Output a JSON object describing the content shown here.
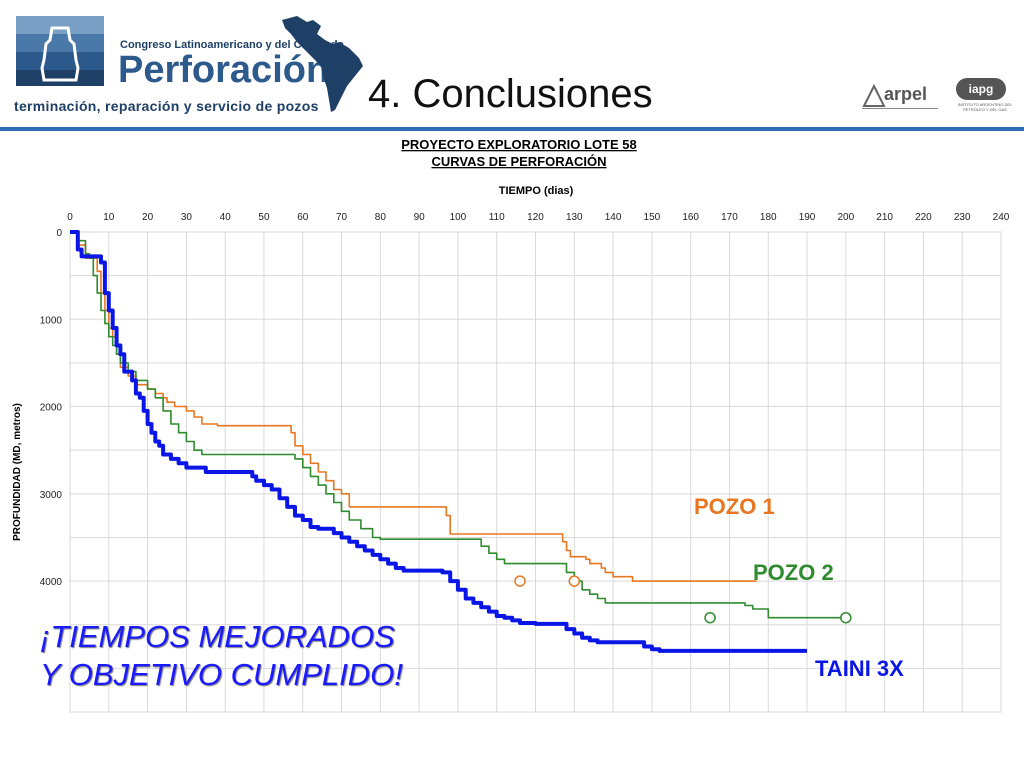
{
  "header": {
    "logo_top_text": "Congreso Latinoamericano y del Caribe de",
    "logo_main_text": "Perforación",
    "logo_bottom_text": "terminación, reparación y servicio de pozos",
    "slide_title": "4. Conclusiones",
    "arpel_text": "arpel",
    "iapg_text": "iapg",
    "iapg_subtext": "INSTITUTO ARGENTINO DEL PETRÓLEO Y DEL GAS"
  },
  "colors": {
    "pozo1": "#e87722",
    "pozo2": "#2e8b2e",
    "taini": "#0a16e6",
    "accent": "#2c6fb5"
  },
  "chart_data": {
    "type": "line",
    "title": "PROYECTO EXPLORATORIO LOTE 58",
    "subtitle": "CURVAS DE PERFORACIÓN",
    "xlabel": "TIEMPO (dias)",
    "ylabel": "PROFUNDIDAD (MD, metros)",
    "xlim": [
      0,
      240
    ],
    "ylim": [
      0,
      5500
    ],
    "x_ticks": [
      0,
      10,
      20,
      30,
      40,
      50,
      60,
      70,
      80,
      90,
      100,
      110,
      120,
      130,
      140,
      150,
      160,
      170,
      180,
      190,
      200,
      210,
      220,
      230,
      240
    ],
    "y_ticks": [
      0,
      1000,
      2000,
      3000,
      4000
    ],
    "y_invert": true,
    "x_axis_position": "top",
    "series": [
      {
        "name": "POZO 1",
        "marker_points": [
          [
            116,
            4000
          ],
          [
            130,
            4000
          ]
        ],
        "points": [
          [
            0,
            0
          ],
          [
            2,
            150
          ],
          [
            4,
            300
          ],
          [
            6,
            300
          ],
          [
            7,
            450
          ],
          [
            8,
            700
          ],
          [
            9,
            900
          ],
          [
            10,
            1100
          ],
          [
            11,
            1200
          ],
          [
            12,
            1400
          ],
          [
            13,
            1550
          ],
          [
            15,
            1650
          ],
          [
            17,
            1750
          ],
          [
            20,
            1800
          ],
          [
            22,
            1850
          ],
          [
            24,
            1900
          ],
          [
            25,
            1950
          ],
          [
            27,
            2000
          ],
          [
            30,
            2050
          ],
          [
            32,
            2120
          ],
          [
            34,
            2200
          ],
          [
            36,
            2200
          ],
          [
            38,
            2220
          ],
          [
            40,
            2220
          ],
          [
            45,
            2220
          ],
          [
            50,
            2220
          ],
          [
            55,
            2220
          ],
          [
            57,
            2300
          ],
          [
            58,
            2450
          ],
          [
            60,
            2550
          ],
          [
            62,
            2650
          ],
          [
            64,
            2750
          ],
          [
            66,
            2850
          ],
          [
            68,
            2950
          ],
          [
            70,
            3000
          ],
          [
            72,
            3150
          ],
          [
            75,
            3150
          ],
          [
            80,
            3150
          ],
          [
            85,
            3150
          ],
          [
            90,
            3150
          ],
          [
            95,
            3150
          ],
          [
            97,
            3250
          ],
          [
            98,
            3460
          ],
          [
            100,
            3460
          ],
          [
            110,
            3460
          ],
          [
            120,
            3460
          ],
          [
            125,
            3460
          ],
          [
            127,
            3550
          ],
          [
            128,
            3650
          ],
          [
            129,
            3720
          ],
          [
            131,
            3720
          ],
          [
            133,
            3750
          ],
          [
            134,
            3800
          ],
          [
            136,
            3800
          ],
          [
            137,
            3850
          ],
          [
            138,
            3900
          ],
          [
            140,
            3950
          ],
          [
            145,
            4000
          ],
          [
            160,
            4000
          ],
          [
            170,
            4000
          ],
          [
            175,
            4000
          ],
          [
            177,
            4000
          ]
        ]
      },
      {
        "name": "POZO 2",
        "marker_points": [
          [
            165,
            4420
          ],
          [
            200,
            4420
          ]
        ],
        "points": [
          [
            0,
            0
          ],
          [
            2,
            100
          ],
          [
            4,
            250
          ],
          [
            5,
            300
          ],
          [
            6,
            500
          ],
          [
            7,
            700
          ],
          [
            8,
            900
          ],
          [
            9,
            1050
          ],
          [
            10,
            1200
          ],
          [
            11,
            1300
          ],
          [
            12,
            1400
          ],
          [
            13,
            1500
          ],
          [
            15,
            1600
          ],
          [
            17,
            1700
          ],
          [
            20,
            1800
          ],
          [
            22,
            1900
          ],
          [
            24,
            2050
          ],
          [
            26,
            2200
          ],
          [
            28,
            2300
          ],
          [
            30,
            2400
          ],
          [
            32,
            2500
          ],
          [
            34,
            2550
          ],
          [
            40,
            2550
          ],
          [
            50,
            2550
          ],
          [
            56,
            2550
          ],
          [
            58,
            2600
          ],
          [
            60,
            2700
          ],
          [
            62,
            2800
          ],
          [
            64,
            2900
          ],
          [
            66,
            3000
          ],
          [
            68,
            3100
          ],
          [
            70,
            3200
          ],
          [
            72,
            3300
          ],
          [
            75,
            3400
          ],
          [
            78,
            3500
          ],
          [
            80,
            3520
          ],
          [
            90,
            3520
          ],
          [
            100,
            3520
          ],
          [
            104,
            3520
          ],
          [
            106,
            3600
          ],
          [
            108,
            3680
          ],
          [
            110,
            3750
          ],
          [
            112,
            3800
          ],
          [
            115,
            3800
          ],
          [
            120,
            3800
          ],
          [
            126,
            3800
          ],
          [
            128,
            3900
          ],
          [
            130,
            4000
          ],
          [
            132,
            4100
          ],
          [
            134,
            4150
          ],
          [
            136,
            4200
          ],
          [
            138,
            4250
          ],
          [
            140,
            4250
          ],
          [
            150,
            4250
          ],
          [
            160,
            4250
          ],
          [
            170,
            4250
          ],
          [
            172,
            4250
          ],
          [
            174,
            4280
          ],
          [
            176,
            4320
          ],
          [
            180,
            4420
          ],
          [
            200,
            4420
          ]
        ]
      },
      {
        "name": "TAINI 3X",
        "marker_points": [],
        "points": [
          [
            0,
            0
          ],
          [
            2,
            200
          ],
          [
            3,
            280
          ],
          [
            4,
            280
          ],
          [
            5,
            280
          ],
          [
            6,
            280
          ],
          [
            7,
            280
          ],
          [
            8,
            350
          ],
          [
            9,
            700
          ],
          [
            10,
            900
          ],
          [
            11,
            1100
          ],
          [
            12,
            1300
          ],
          [
            13,
            1400
          ],
          [
            14,
            1600
          ],
          [
            15,
            1600
          ],
          [
            16,
            1700
          ],
          [
            17,
            1850
          ],
          [
            18,
            1900
          ],
          [
            19,
            2050
          ],
          [
            20,
            2200
          ],
          [
            21,
            2300
          ],
          [
            22,
            2400
          ],
          [
            23,
            2450
          ],
          [
            24,
            2550
          ],
          [
            26,
            2600
          ],
          [
            28,
            2650
          ],
          [
            30,
            2700
          ],
          [
            35,
            2750
          ],
          [
            40,
            2750
          ],
          [
            45,
            2750
          ],
          [
            47,
            2800
          ],
          [
            48,
            2850
          ],
          [
            50,
            2900
          ],
          [
            52,
            2950
          ],
          [
            54,
            3050
          ],
          [
            56,
            3150
          ],
          [
            58,
            3250
          ],
          [
            60,
            3300
          ],
          [
            62,
            3380
          ],
          [
            64,
            3400
          ],
          [
            66,
            3400
          ],
          [
            68,
            3450
          ],
          [
            70,
            3500
          ],
          [
            72,
            3550
          ],
          [
            74,
            3600
          ],
          [
            76,
            3650
          ],
          [
            78,
            3700
          ],
          [
            80,
            3750
          ],
          [
            82,
            3800
          ],
          [
            84,
            3850
          ],
          [
            86,
            3880
          ],
          [
            88,
            3880
          ],
          [
            90,
            3880
          ],
          [
            92,
            3880
          ],
          [
            94,
            3880
          ],
          [
            96,
            3900
          ],
          [
            98,
            4000
          ],
          [
            100,
            4100
          ],
          [
            102,
            4200
          ],
          [
            104,
            4250
          ],
          [
            106,
            4300
          ],
          [
            108,
            4350
          ],
          [
            110,
            4400
          ],
          [
            112,
            4420
          ],
          [
            114,
            4450
          ],
          [
            116,
            4480
          ],
          [
            118,
            4480
          ],
          [
            120,
            4490
          ],
          [
            126,
            4490
          ],
          [
            128,
            4550
          ],
          [
            130,
            4600
          ],
          [
            132,
            4650
          ],
          [
            134,
            4680
          ],
          [
            136,
            4700
          ],
          [
            138,
            4700
          ],
          [
            140,
            4700
          ],
          [
            146,
            4700
          ],
          [
            148,
            4750
          ],
          [
            150,
            4780
          ],
          [
            152,
            4800
          ],
          [
            160,
            4800
          ],
          [
            170,
            4800
          ],
          [
            180,
            4800
          ],
          [
            188,
            4800
          ],
          [
            190,
            4800
          ]
        ]
      }
    ],
    "labels": {
      "pozo1": "POZO 1",
      "pozo2": "POZO 2",
      "taini": "TAINI 3X"
    },
    "annotation_line1": "¡TIEMPOS MEJORADOS",
    "annotation_line2": "Y OBJETIVO CUMPLIDO!"
  }
}
